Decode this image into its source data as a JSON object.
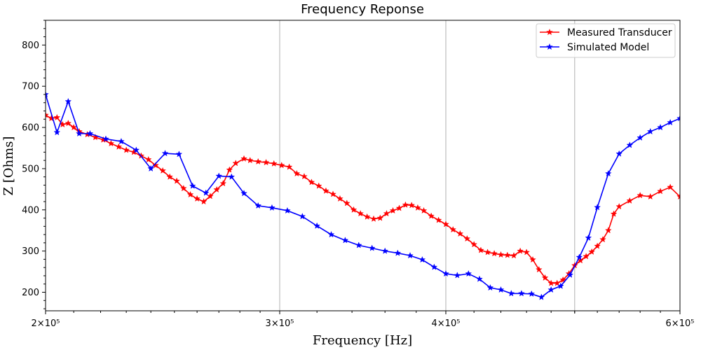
{
  "chart_data": {
    "type": "line",
    "title": "Frequency Reponse",
    "xlabel": "Frequency [Hz]",
    "ylabel": "Z [Ohms]",
    "xscale": "log",
    "xlim": [
      200000,
      600000
    ],
    "ylim": [
      155,
      860
    ],
    "x_ticks": [
      {
        "value": 200000,
        "label": "2×10⁵"
      },
      {
        "value": 300000,
        "label": "3×10⁵"
      },
      {
        "value": 400000,
        "label": "4×10⁵"
      },
      {
        "value": 600000,
        "label": "6×10⁵"
      }
    ],
    "y_ticks": [
      200,
      300,
      400,
      500,
      600,
      700,
      800
    ],
    "grid": "vertical major lines at 300000, 400000, 500000",
    "legend": "top-right",
    "series": [
      {
        "name": "Measured Transducer",
        "color": "#ff0000",
        "marker": "star",
        "points": [
          [
            200000,
            630
          ],
          [
            202000,
            622
          ],
          [
            204000,
            624
          ],
          [
            206000,
            607
          ],
          [
            208000,
            610
          ],
          [
            210000,
            600
          ],
          [
            212000,
            590
          ],
          [
            215000,
            583
          ],
          [
            218000,
            576
          ],
          [
            221000,
            570
          ],
          [
            224000,
            561
          ],
          [
            227000,
            553
          ],
          [
            230000,
            545
          ],
          [
            233000,
            540
          ],
          [
            236000,
            531
          ],
          [
            239000,
            522
          ],
          [
            242000,
            508
          ],
          [
            245000,
            495
          ],
          [
            248000,
            480
          ],
          [
            251000,
            470
          ],
          [
            254000,
            452
          ],
          [
            257000,
            437
          ],
          [
            260000,
            427
          ],
          [
            263000,
            420
          ],
          [
            266000,
            433
          ],
          [
            269000,
            449
          ],
          [
            272000,
            464
          ],
          [
            275000,
            497
          ],
          [
            278000,
            513
          ],
          [
            282000,
            524
          ],
          [
            285000,
            520
          ],
          [
            289000,
            517
          ],
          [
            293000,
            515
          ],
          [
            297000,
            512
          ],
          [
            301000,
            508
          ],
          [
            305000,
            504
          ],
          [
            309000,
            488
          ],
          [
            313000,
            481
          ],
          [
            317000,
            467
          ],
          [
            321000,
            458
          ],
          [
            325000,
            446
          ],
          [
            329000,
            438
          ],
          [
            333000,
            427
          ],
          [
            337000,
            416
          ],
          [
            341000,
            400
          ],
          [
            345000,
            391
          ],
          [
            349000,
            383
          ],
          [
            353000,
            378
          ],
          [
            357000,
            380
          ],
          [
            361000,
            391
          ],
          [
            365000,
            398
          ],
          [
            369000,
            404
          ],
          [
            373000,
            412
          ],
          [
            377000,
            411
          ],
          [
            381000,
            405
          ],
          [
            385000,
            398
          ],
          [
            390000,
            385
          ],
          [
            395000,
            375
          ],
          [
            400000,
            365
          ],
          [
            405000,
            352
          ],
          [
            410000,
            342
          ],
          [
            415000,
            330
          ],
          [
            420000,
            316
          ],
          [
            425000,
            302
          ],
          [
            430000,
            297
          ],
          [
            435000,
            294
          ],
          [
            440000,
            291
          ],
          [
            445000,
            290
          ],
          [
            450000,
            289
          ],
          [
            455000,
            300
          ],
          [
            460000,
            297
          ],
          [
            465000,
            279
          ],
          [
            470000,
            255
          ],
          [
            475000,
            235
          ],
          [
            480000,
            222
          ],
          [
            485000,
            222
          ],
          [
            490000,
            230
          ],
          [
            495000,
            245
          ],
          [
            500000,
            265
          ],
          [
            505000,
            277
          ],
          [
            510000,
            287
          ],
          [
            515000,
            298
          ],
          [
            520000,
            312
          ],
          [
            525000,
            328
          ],
          [
            530000,
            350
          ],
          [
            535000,
            390
          ],
          [
            540000,
            408
          ],
          [
            550000,
            422
          ],
          [
            560000,
            435
          ],
          [
            570000,
            432
          ],
          [
            580000,
            445
          ],
          [
            590000,
            455
          ],
          [
            600000,
            432
          ]
        ]
      },
      {
        "name": "Simulated Model",
        "color": "#0000ff",
        "marker": "star",
        "points": [
          [
            200000,
            680
          ],
          [
            204000,
            588
          ],
          [
            208000,
            663
          ],
          [
            212000,
            585
          ],
          [
            216000,
            585
          ],
          [
            222000,
            572
          ],
          [
            228000,
            566
          ],
          [
            234000,
            545
          ],
          [
            240000,
            500
          ],
          [
            246000,
            537
          ],
          [
            252000,
            535
          ],
          [
            258000,
            458
          ],
          [
            264000,
            441
          ],
          [
            270000,
            482
          ],
          [
            276000,
            480
          ],
          [
            282000,
            440
          ],
          [
            289000,
            410
          ],
          [
            296000,
            405
          ],
          [
            304000,
            398
          ],
          [
            312000,
            384
          ],
          [
            320000,
            361
          ],
          [
            328000,
            340
          ],
          [
            336000,
            326
          ],
          [
            344000,
            314
          ],
          [
            352000,
            307
          ],
          [
            360000,
            300
          ],
          [
            368000,
            295
          ],
          [
            376000,
            289
          ],
          [
            384000,
            279
          ],
          [
            392000,
            261
          ],
          [
            400000,
            245
          ],
          [
            408000,
            241
          ],
          [
            416000,
            245
          ],
          [
            424000,
            232
          ],
          [
            432000,
            211
          ],
          [
            440000,
            206
          ],
          [
            448000,
            197
          ],
          [
            456000,
            197
          ],
          [
            464000,
            196
          ],
          [
            472000,
            188
          ],
          [
            480000,
            206
          ],
          [
            488000,
            215
          ],
          [
            496000,
            242
          ],
          [
            504000,
            285
          ],
          [
            512000,
            332
          ],
          [
            520000,
            406
          ],
          [
            530000,
            488
          ],
          [
            540000,
            536
          ],
          [
            550000,
            557
          ],
          [
            560000,
            575
          ],
          [
            570000,
            590
          ],
          [
            580000,
            600
          ],
          [
            590000,
            612
          ],
          [
            600000,
            622
          ]
        ]
      }
    ]
  }
}
